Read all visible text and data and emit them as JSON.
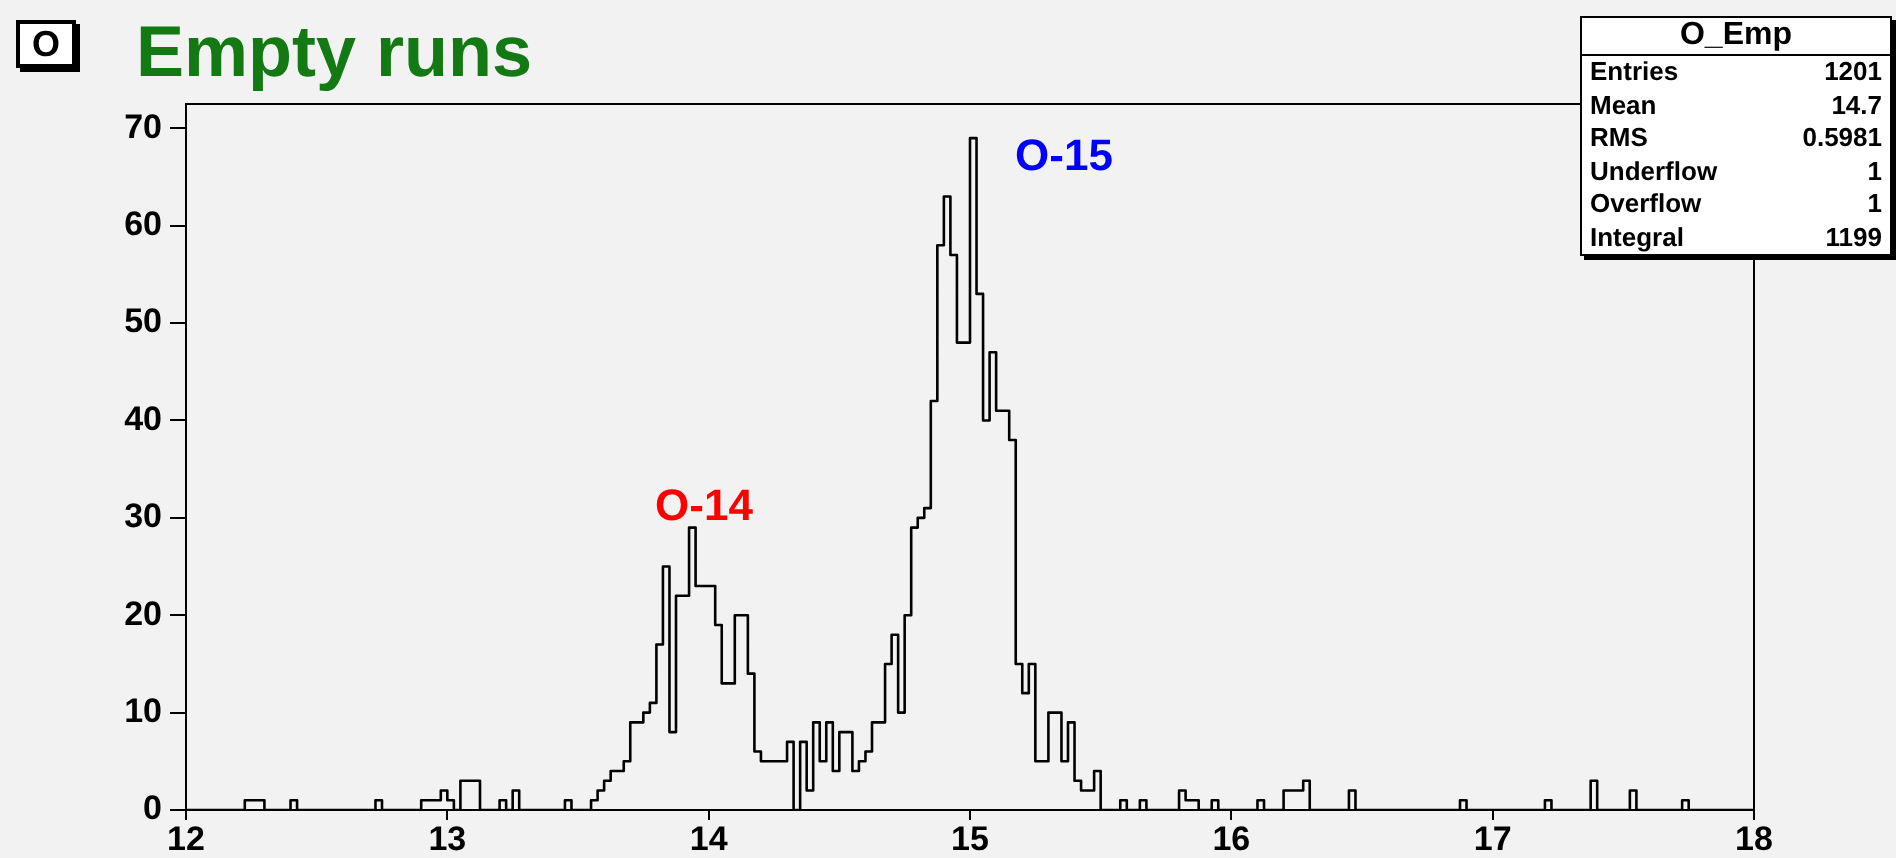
{
  "chart_data": {
    "type": "histogram",
    "title": "Empty runs",
    "color": "#000000",
    "bins": [
      12,
      12.025,
      12.05,
      12.075,
      12.1,
      12.125,
      12.15,
      12.175,
      12.2,
      12.225,
      12.25,
      12.275,
      12.3,
      12.325,
      12.35,
      12.375,
      12.4,
      12.425,
      12.45,
      12.475,
      12.5,
      12.525,
      12.55,
      12.575,
      12.6,
      12.625,
      12.65,
      12.675,
      12.7,
      12.725,
      12.75,
      12.775,
      12.8,
      12.825,
      12.85,
      12.875,
      12.9,
      12.925,
      12.95,
      12.975,
      13,
      13.025,
      13.05,
      13.075,
      13.1,
      13.125,
      13.15,
      13.175,
      13.2,
      13.225,
      13.25,
      13.275,
      13.3,
      13.325,
      13.35,
      13.375,
      13.4,
      13.425,
      13.45,
      13.475,
      13.5,
      13.525,
      13.55,
      13.575,
      13.6,
      13.625,
      13.65,
      13.675,
      13.7,
      13.725,
      13.75,
      13.775,
      13.8,
      13.825,
      13.85,
      13.875,
      13.9,
      13.925,
      13.95,
      13.975,
      14,
      14.025,
      14.05,
      14.075,
      14.1,
      14.125,
      14.15,
      14.175,
      14.2,
      14.225,
      14.25,
      14.275,
      14.3,
      14.325,
      14.35,
      14.375,
      14.4,
      14.425,
      14.45,
      14.475,
      14.5,
      14.525,
      14.55,
      14.575,
      14.6,
      14.625,
      14.65,
      14.675,
      14.7,
      14.725,
      14.75,
      14.775,
      14.8,
      14.825,
      14.85,
      14.875,
      14.9,
      14.925,
      14.95,
      14.975,
      15,
      15.025,
      15.05,
      15.075,
      15.1,
      15.125,
      15.15,
      15.175,
      15.2,
      15.225,
      15.25,
      15.275,
      15.3,
      15.325,
      15.35,
      15.375,
      15.4,
      15.425,
      15.45,
      15.475,
      15.5,
      15.525,
      15.55,
      15.575,
      15.6,
      15.625,
      15.65,
      15.675,
      15.7,
      15.725,
      15.75,
      15.775,
      15.8,
      15.825,
      15.85,
      15.875,
      15.9,
      15.925,
      15.95,
      15.975,
      16,
      16.025,
      16.05,
      16.075,
      16.1,
      16.125,
      16.15,
      16.175,
      16.2,
      16.225,
      16.25,
      16.275,
      16.3,
      16.325,
      16.35,
      16.375,
      16.4,
      16.425,
      16.45,
      16.475,
      16.5,
      16.525,
      16.55,
      16.575,
      16.6,
      16.625,
      16.65,
      16.675,
      16.7,
      16.725,
      16.75,
      16.775,
      16.8,
      16.825,
      16.85,
      16.875,
      16.9,
      16.925,
      16.95,
      16.975,
      17,
      17.025,
      17.05,
      17.075,
      17.1,
      17.125,
      17.15,
      17.175,
      17.2,
      17.225,
      17.25,
      17.275,
      17.3,
      17.325,
      17.35,
      17.375,
      17.4,
      17.425,
      17.45,
      17.475,
      17.5,
      17.525,
      17.55,
      17.575,
      17.6,
      17.625,
      17.65,
      17.675,
      17.7,
      17.725,
      17.75,
      17.775,
      17.8,
      17.825,
      17.85,
      17.875,
      17.9,
      17.925,
      17.95,
      17.975,
      18
    ],
    "values": [
      0,
      0,
      0,
      0,
      0,
      0,
      0,
      0,
      0,
      1,
      1,
      1,
      0,
      0,
      0,
      0,
      1,
      0,
      0,
      0,
      0,
      0,
      0,
      0,
      0,
      0,
      0,
      0,
      0,
      1,
      0,
      0,
      0,
      0,
      0,
      0,
      1,
      1,
      1,
      2,
      1,
      0,
      3,
      3,
      3,
      0,
      0,
      0,
      1,
      0,
      2,
      0,
      0,
      0,
      0,
      0,
      0,
      0,
      1,
      0,
      0,
      0,
      1,
      2,
      3,
      4,
      4,
      5,
      9,
      9,
      10,
      11,
      17,
      25,
      8,
      22,
      22,
      29,
      23,
      23,
      23,
      19,
      13,
      13,
      20,
      20,
      14,
      6,
      5,
      5,
      5,
      5,
      7,
      0,
      7,
      2,
      9,
      5,
      9,
      4,
      8,
      8,
      4,
      5,
      6,
      9,
      9,
      15,
      18,
      10,
      20,
      29,
      30,
      31,
      42,
      58,
      63,
      57,
      48,
      48,
      69,
      53,
      40,
      47,
      41,
      41,
      38,
      15,
      12,
      15,
      5,
      5,
      10,
      10,
      5,
      9,
      3,
      2,
      2,
      4,
      0,
      0,
      0,
      1,
      0,
      0,
      1,
      0,
      0,
      0,
      0,
      0,
      2,
      1,
      1,
      0,
      0,
      1,
      0,
      0,
      0,
      0,
      0,
      0,
      1,
      0,
      0,
      0,
      2,
      2,
      2,
      3,
      0,
      0,
      0,
      0,
      0,
      0,
      2,
      0,
      0,
      0,
      0,
      0,
      0,
      0,
      0,
      0,
      0,
      0,
      0,
      0,
      0,
      0,
      0,
      1,
      0,
      0,
      0,
      0,
      0,
      0,
      0,
      0,
      0,
      0,
      0,
      0,
      1,
      0,
      0,
      0,
      0,
      0,
      0,
      3,
      0,
      0,
      0,
      0,
      0,
      2,
      0,
      0,
      0,
      0,
      0,
      0,
      0,
      1,
      0,
      0,
      0,
      0,
      0,
      0,
      0,
      0,
      0,
      0
    ],
    "xlim": [
      12,
      18
    ],
    "xticks": [
      12,
      13,
      14,
      15,
      16,
      17,
      18
    ],
    "ylim": [
      0,
      72.5
    ],
    "yticks": [
      0,
      10,
      20,
      30,
      40,
      50,
      60,
      70
    ],
    "annotations": [
      "O",
      "O-14",
      "O-15",
      "O_Emp",
      "Entries",
      "1201",
      "Mean",
      "14.7",
      "RMS",
      "0.5981",
      "Underflow",
      "1",
      "Overflow",
      "1",
      "Integral",
      "1199"
    ]
  }
}
